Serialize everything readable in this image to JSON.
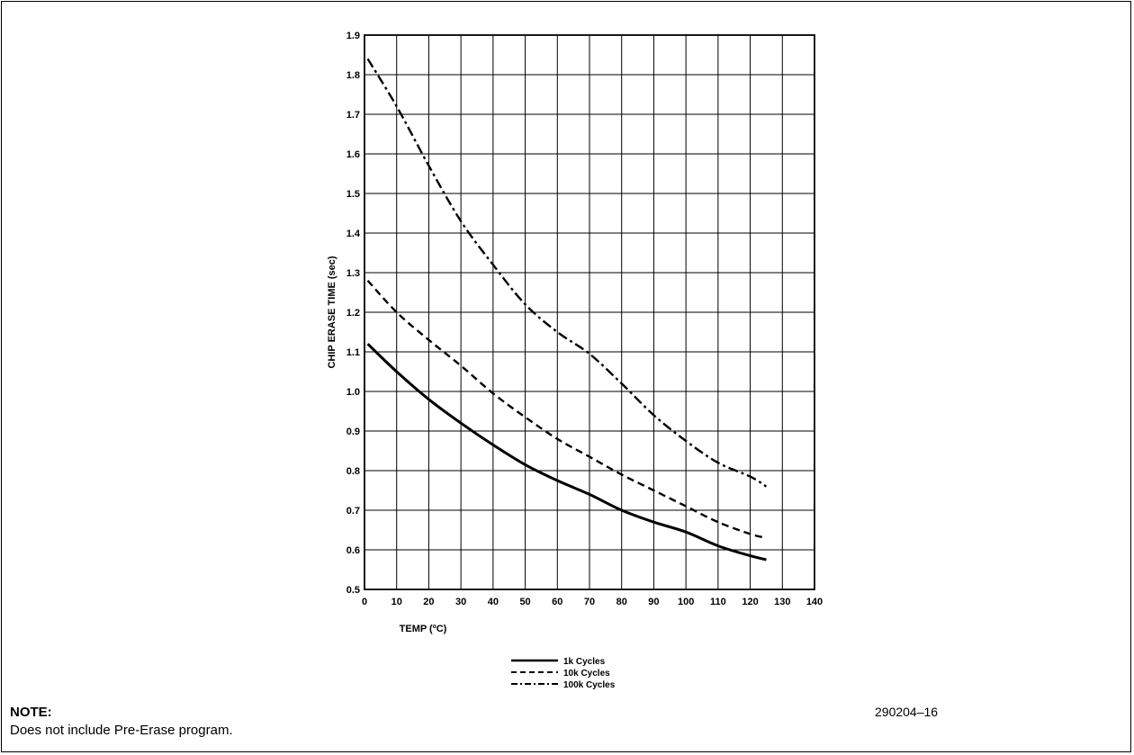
{
  "chart_data": {
    "type": "line",
    "xlabel": "TEMP (ºC)",
    "ylabel": "CHIP ERASE TIME (sec)",
    "xlim": [
      0,
      140
    ],
    "ylim": [
      0.5,
      1.9
    ],
    "x_ticks": [
      0,
      10,
      20,
      30,
      40,
      50,
      60,
      70,
      80,
      90,
      100,
      110,
      120,
      130,
      140
    ],
    "y_ticks": [
      0.5,
      0.6,
      0.7,
      0.8,
      0.9,
      1.0,
      1.1,
      1.2,
      1.3,
      1.4,
      1.5,
      1.6,
      1.7,
      1.8,
      1.9
    ],
    "grid": true,
    "legend_position": "bottom-center",
    "series": [
      {
        "name": "1k Cycles",
        "style": "solid",
        "x": [
          1,
          10,
          20,
          30,
          40,
          50,
          60,
          70,
          80,
          90,
          100,
          110,
          120,
          125
        ],
        "y": [
          1.12,
          1.05,
          0.98,
          0.92,
          0.865,
          0.815,
          0.775,
          0.74,
          0.7,
          0.67,
          0.645,
          0.61,
          0.585,
          0.575
        ]
      },
      {
        "name": "10k Cycles",
        "style": "dashed",
        "x": [
          1,
          10,
          20,
          30,
          40,
          50,
          60,
          70,
          80,
          90,
          100,
          110,
          120,
          125
        ],
        "y": [
          1.28,
          1.2,
          1.13,
          1.065,
          0.995,
          0.935,
          0.88,
          0.835,
          0.79,
          0.75,
          0.71,
          0.67,
          0.64,
          0.63
        ]
      },
      {
        "name": "100k Cycles",
        "style": "dash-dot",
        "x": [
          1,
          10,
          20,
          30,
          40,
          50,
          60,
          70,
          80,
          90,
          100,
          110,
          120,
          125
        ],
        "y": [
          1.84,
          1.72,
          1.57,
          1.43,
          1.32,
          1.22,
          1.15,
          1.095,
          1.02,
          0.94,
          0.875,
          0.82,
          0.785,
          0.76
        ]
      }
    ]
  },
  "note": {
    "heading": "NOTE:",
    "text": "Does not include Pre-Erase program."
  },
  "figure_id": "290204–16"
}
